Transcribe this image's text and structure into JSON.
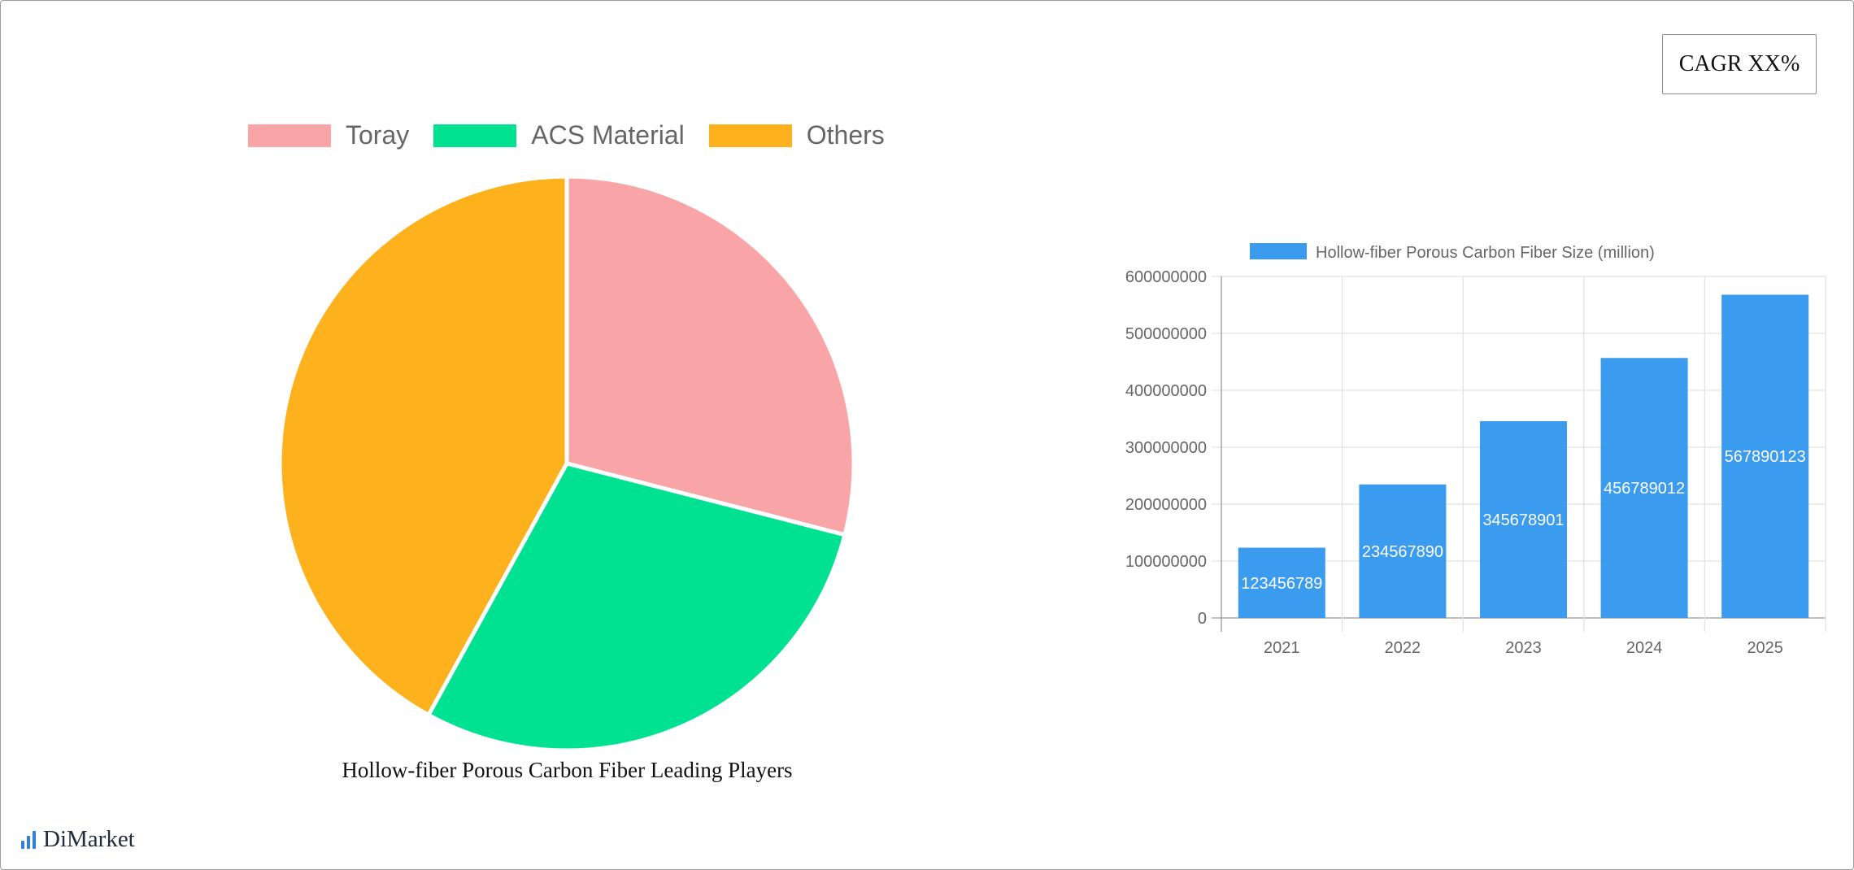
{
  "cagr_label": "CAGR XX%",
  "brand": "DiMarket",
  "colors": {
    "blue": "#3a9bef",
    "pink": "#f9a5a8",
    "green": "#00e291",
    "orange": "#fdb11c"
  },
  "chart_data": [
    {
      "type": "pie",
      "title": "Hollow-fiber Porous Carbon Fiber Leading Players",
      "legend_position": "top",
      "slices": [
        {
          "label": "Toray",
          "value": 29,
          "color": "#f9a5a8"
        },
        {
          "label": "ACS Material",
          "value": 29,
          "color": "#00e291"
        },
        {
          "label": "Others",
          "value": 42,
          "color": "#fdb11c"
        }
      ]
    },
    {
      "type": "bar",
      "title": "",
      "legend_position": "top",
      "categories": [
        "2021",
        "2022",
        "2023",
        "2024",
        "2025"
      ],
      "series": [
        {
          "name": "Hollow-fiber Porous Carbon Fiber Size (million)",
          "values": [
            123456789,
            234567890,
            345678901,
            456789012,
            567890123
          ],
          "color": "#3a9bef"
        }
      ],
      "yticks": [
        "0",
        "100000000",
        "200000000",
        "300000000",
        "400000000",
        "500000000",
        "600000000"
      ],
      "ylim": [
        0,
        600000000
      ],
      "grid": true,
      "xlabel": "",
      "ylabel": ""
    }
  ]
}
